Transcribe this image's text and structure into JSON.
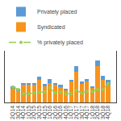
{
  "chart_data": {
    "type": "bar",
    "stacked": true,
    "categories": [
      "2Q14",
      "3Q14",
      "4Q14",
      "1Q15",
      "2Q15",
      "3Q15",
      "4Q15",
      "1Q16",
      "2Q16",
      "3Q16",
      "4Q16",
      "1Q17",
      "2Q17",
      "3Q17",
      "4Q17",
      "1Q18",
      "2Q18",
      "3Q18",
      "4Q18"
    ],
    "series": [
      {
        "name": "Syndicated",
        "type": "bar",
        "color": "#f7941d",
        "values": [
          13,
          11,
          17,
          17,
          17,
          22,
          16,
          19,
          17,
          15,
          12,
          20,
          30,
          18,
          20,
          14,
          35,
          22,
          17
        ]
      },
      {
        "name": "Privately placed",
        "type": "bar",
        "color": "#5b9bd5",
        "values": [
          3,
          2,
          2,
          2,
          2,
          3,
          2,
          4,
          2,
          2,
          1,
          2,
          5,
          2,
          3,
          2,
          6,
          4,
          5
        ]
      },
      {
        "name": "% privately placed",
        "type": "line",
        "axis": "y2",
        "color": "#92d050",
        "line_style": "dashed",
        "marker": "circle",
        "values": [
          18,
          15,
          10,
          10,
          11,
          12,
          12,
          17,
          11,
          12,
          10,
          10,
          14,
          11,
          13,
          13,
          15,
          15,
          22
        ]
      }
    ],
    "ylim": [
      0,
      50
    ],
    "y2lim": [
      0,
      60
    ],
    "tick_labels": "x",
    "grid": false,
    "legend": "upper left"
  }
}
